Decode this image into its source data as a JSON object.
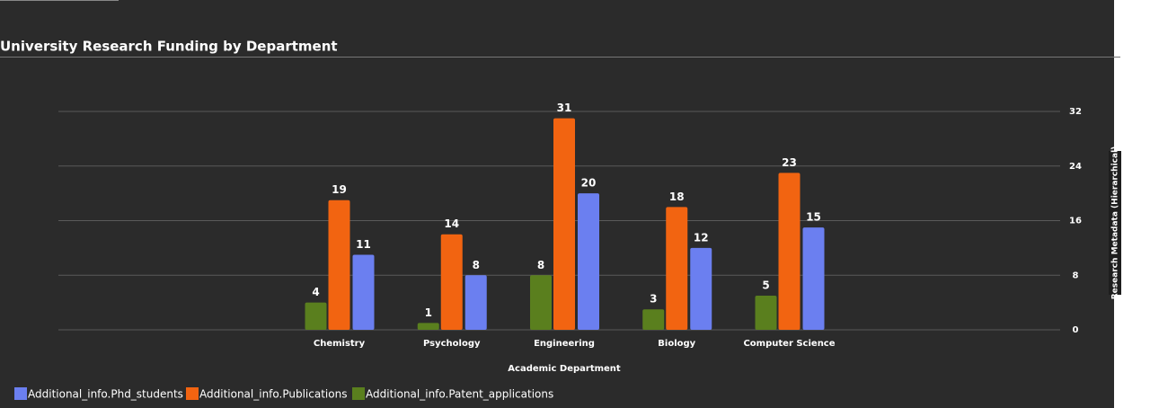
{
  "chart_data": {
    "type": "bar",
    "title": "University Research Funding by Department",
    "xlabel": "Academic Department",
    "ylabel": "Research Metadata (Hierarchical)",
    "categories": [
      "Chemistry",
      "Psychology",
      "Engineering",
      "Biology",
      "Computer Science"
    ],
    "series": [
      {
        "name": "Additional_info.Phd_students",
        "color": "#6b7ff0",
        "values": [
          11,
          8,
          20,
          12,
          15
        ]
      },
      {
        "name": "Additional_info.Publications",
        "color": "#f26411",
        "values": [
          19,
          14,
          31,
          18,
          23
        ]
      },
      {
        "name": "Additional_info.Patent_applications",
        "color": "#5a7f1e",
        "values": [
          4,
          1,
          8,
          3,
          5
        ]
      }
    ],
    "ylim": [
      0,
      32
    ],
    "yticks": [
      0,
      8,
      16,
      24,
      32
    ],
    "grid": true
  }
}
